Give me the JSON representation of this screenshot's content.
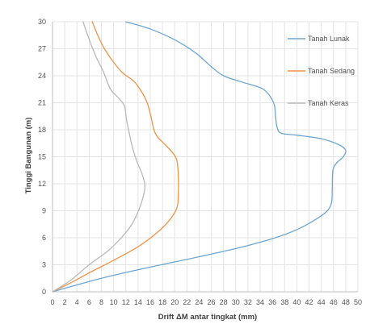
{
  "chart_data": {
    "type": "line",
    "title": "",
    "xlabel": "Drift ΔM antar tingkat (mm)",
    "ylabel": "Tinggi Bangunan (m)",
    "xlim": [
      0,
      50
    ],
    "ylim": [
      0,
      30
    ],
    "xticks": [
      0,
      2,
      4,
      6,
      8,
      10,
      12,
      14,
      16,
      18,
      20,
      22,
      24,
      26,
      28,
      30,
      32,
      34,
      36,
      38,
      40,
      42,
      44,
      46,
      48,
      50
    ],
    "yticks": [
      0,
      3,
      6,
      9,
      12,
      15,
      18,
      21,
      24,
      27,
      30
    ],
    "grid": true,
    "legend_position": "right",
    "series": [
      {
        "name": "Tanah Lunak",
        "color": "#6ea6d2",
        "points": [
          [
            0,
            0
          ],
          [
            8,
            1.5
          ],
          [
            15,
            2.6
          ],
          [
            22,
            3.6
          ],
          [
            30,
            4.8
          ],
          [
            36,
            5.9
          ],
          [
            40,
            6.9
          ],
          [
            43,
            8
          ],
          [
            45,
            9
          ],
          [
            45.7,
            10
          ],
          [
            45.8,
            11.5
          ],
          [
            45.9,
            13.5
          ],
          [
            46.5,
            14.3
          ],
          [
            47.6,
            15
          ],
          [
            48,
            15.7
          ],
          [
            47,
            16.3
          ],
          [
            44,
            17
          ],
          [
            40,
            17.4
          ],
          [
            37.5,
            17.6
          ],
          [
            36.8,
            18.2
          ],
          [
            36.5,
            19.5
          ],
          [
            36.2,
            21
          ],
          [
            34.5,
            22.5
          ],
          [
            31,
            23.3
          ],
          [
            28,
            24
          ],
          [
            26,
            25
          ],
          [
            23.5,
            26.5
          ],
          [
            20,
            28
          ],
          [
            16,
            29.2
          ],
          [
            12,
            30
          ]
        ]
      },
      {
        "name": "Tanah Sedang",
        "color": "#f0944a",
        "points": [
          [
            0,
            0
          ],
          [
            3,
            1
          ],
          [
            6,
            2.1
          ],
          [
            10,
            3.5
          ],
          [
            14,
            5
          ],
          [
            17,
            6.5
          ],
          [
            19.2,
            8
          ],
          [
            20.4,
            9.4
          ],
          [
            20.6,
            11
          ],
          [
            20.6,
            12.5
          ],
          [
            20.4,
            14.5
          ],
          [
            19.7,
            15.4
          ],
          [
            18.5,
            16.3
          ],
          [
            17.2,
            17.2
          ],
          [
            16.6,
            18
          ],
          [
            16.1,
            19.5
          ],
          [
            15.5,
            21
          ],
          [
            14.6,
            22.2
          ],
          [
            13.3,
            23.4
          ],
          [
            11.5,
            24.3
          ],
          [
            10,
            25.5
          ],
          [
            8.5,
            27
          ],
          [
            7.4,
            28.5
          ],
          [
            6.5,
            30
          ]
        ]
      },
      {
        "name": "Tanah Keras",
        "color": "#b9b9b9",
        "points": [
          [
            0,
            0
          ],
          [
            3,
            1.3
          ],
          [
            6,
            3
          ],
          [
            9,
            4.5
          ],
          [
            11,
            5.8
          ],
          [
            13,
            7.5
          ],
          [
            14.3,
            9.4
          ],
          [
            15,
            11
          ],
          [
            15.1,
            12
          ],
          [
            14.6,
            13.2
          ],
          [
            13.8,
            14.5
          ],
          [
            13.1,
            16
          ],
          [
            12.6,
            17.5
          ],
          [
            12.1,
            19.2
          ],
          [
            11.8,
            20.6
          ],
          [
            11,
            21.4
          ],
          [
            9.5,
            22.5
          ],
          [
            8.3,
            24.5
          ],
          [
            7.2,
            26
          ],
          [
            6.3,
            27.5
          ],
          [
            5.5,
            29
          ],
          [
            5,
            30
          ]
        ]
      }
    ]
  }
}
